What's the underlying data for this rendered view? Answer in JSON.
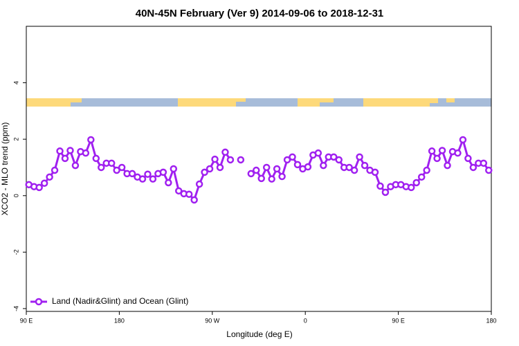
{
  "chart_data": {
    "type": "line",
    "title": "40N-45N February (Ver 9)   2014-09-06 to 2018-12-31",
    "x_label": "Longitude (deg E)",
    "y_label": "XCO2 - MLO trend (ppm)",
    "xlim": [
      90,
      540
    ],
    "ylim": [
      -4.1,
      6
    ],
    "xticks": [
      {
        "value": 90,
        "label": "90 E"
      },
      180,
      {
        "value": 270,
        "label": "90 W"
      },
      {
        "value": 360,
        "label": "0"
      },
      {
        "value": 450,
        "label": "90 E"
      },
      {
        "value": 540,
        "label": "180"
      }
    ],
    "yticks": [
      -4,
      -2,
      0,
      2,
      4
    ],
    "legend": "bottom-left",
    "x": [
      92.5,
      97.5,
      102.5,
      107.5,
      112.5,
      117.5,
      122.5,
      127.5,
      132.5,
      137.5,
      142.5,
      147.5,
      152.5,
      157.5,
      162.5,
      167.5,
      172.5,
      177.5,
      182.5,
      187.5,
      192.5,
      197.5,
      202.5,
      207.5,
      212.5,
      217.5,
      222.5,
      227.5,
      232.5,
      237.5,
      242.5,
      247.5,
      252.5,
      257.5,
      262.5,
      267.5,
      272.5,
      277.5,
      282.5,
      287.5,
      292.5,
      297.5,
      302.5,
      307.5,
      312.5,
      317.5,
      322.5,
      327.5,
      332.5,
      337.5,
      342.5,
      347.5,
      352.5,
      357.5,
      362.5,
      367.5,
      372.5,
      377.5,
      382.5,
      387.5,
      392.5,
      397.5,
      402.5,
      407.5,
      412.5,
      417.5,
      422.5,
      427.5,
      432.5,
      437.5,
      442.5,
      447.5,
      452.5,
      457.5,
      462.5,
      467.5,
      472.5,
      477.5,
      482.5,
      487.5,
      492.5,
      497.5,
      502.5,
      507.5,
      512.5,
      517.5,
      522.5,
      527.5,
      532.5,
      537.5
    ],
    "series": [
      {
        "name": "Land (Nadir&Glint) and Ocean (Glint)",
        "color": "#a020f0",
        "values": [
          0.39,
          0.32,
          0.29,
          0.44,
          0.66,
          0.9,
          1.58,
          1.32,
          1.6,
          1.07,
          1.56,
          1.51,
          1.98,
          1.32,
          1.0,
          1.15,
          1.15,
          0.9,
          1.0,
          0.78,
          0.78,
          0.66,
          0.59,
          0.76,
          0.59,
          0.78,
          0.83,
          0.46,
          0.95,
          0.17,
          0.07,
          0.05,
          -0.15,
          0.41,
          0.83,
          0.95,
          1.29,
          1.0,
          1.54,
          1.27,
          null,
          1.27,
          null,
          0.78,
          0.9,
          0.61,
          1.0,
          0.59,
          0.95,
          0.68,
          1.27,
          1.37,
          1.1,
          0.95,
          1.02,
          1.44,
          1.51,
          1.07,
          1.37,
          1.37,
          1.27,
          1.0,
          1.0,
          0.9,
          1.37,
          1.07,
          0.9,
          0.83,
          0.34,
          0.12,
          0.32,
          0.39,
          0.39,
          0.32,
          0.29,
          0.46,
          0.66,
          0.9,
          1.58,
          1.32,
          1.6,
          1.07,
          1.56,
          1.51,
          1.98,
          1.32,
          1.0,
          1.15,
          1.15,
          0.9
        ]
      }
    ]
  }
}
